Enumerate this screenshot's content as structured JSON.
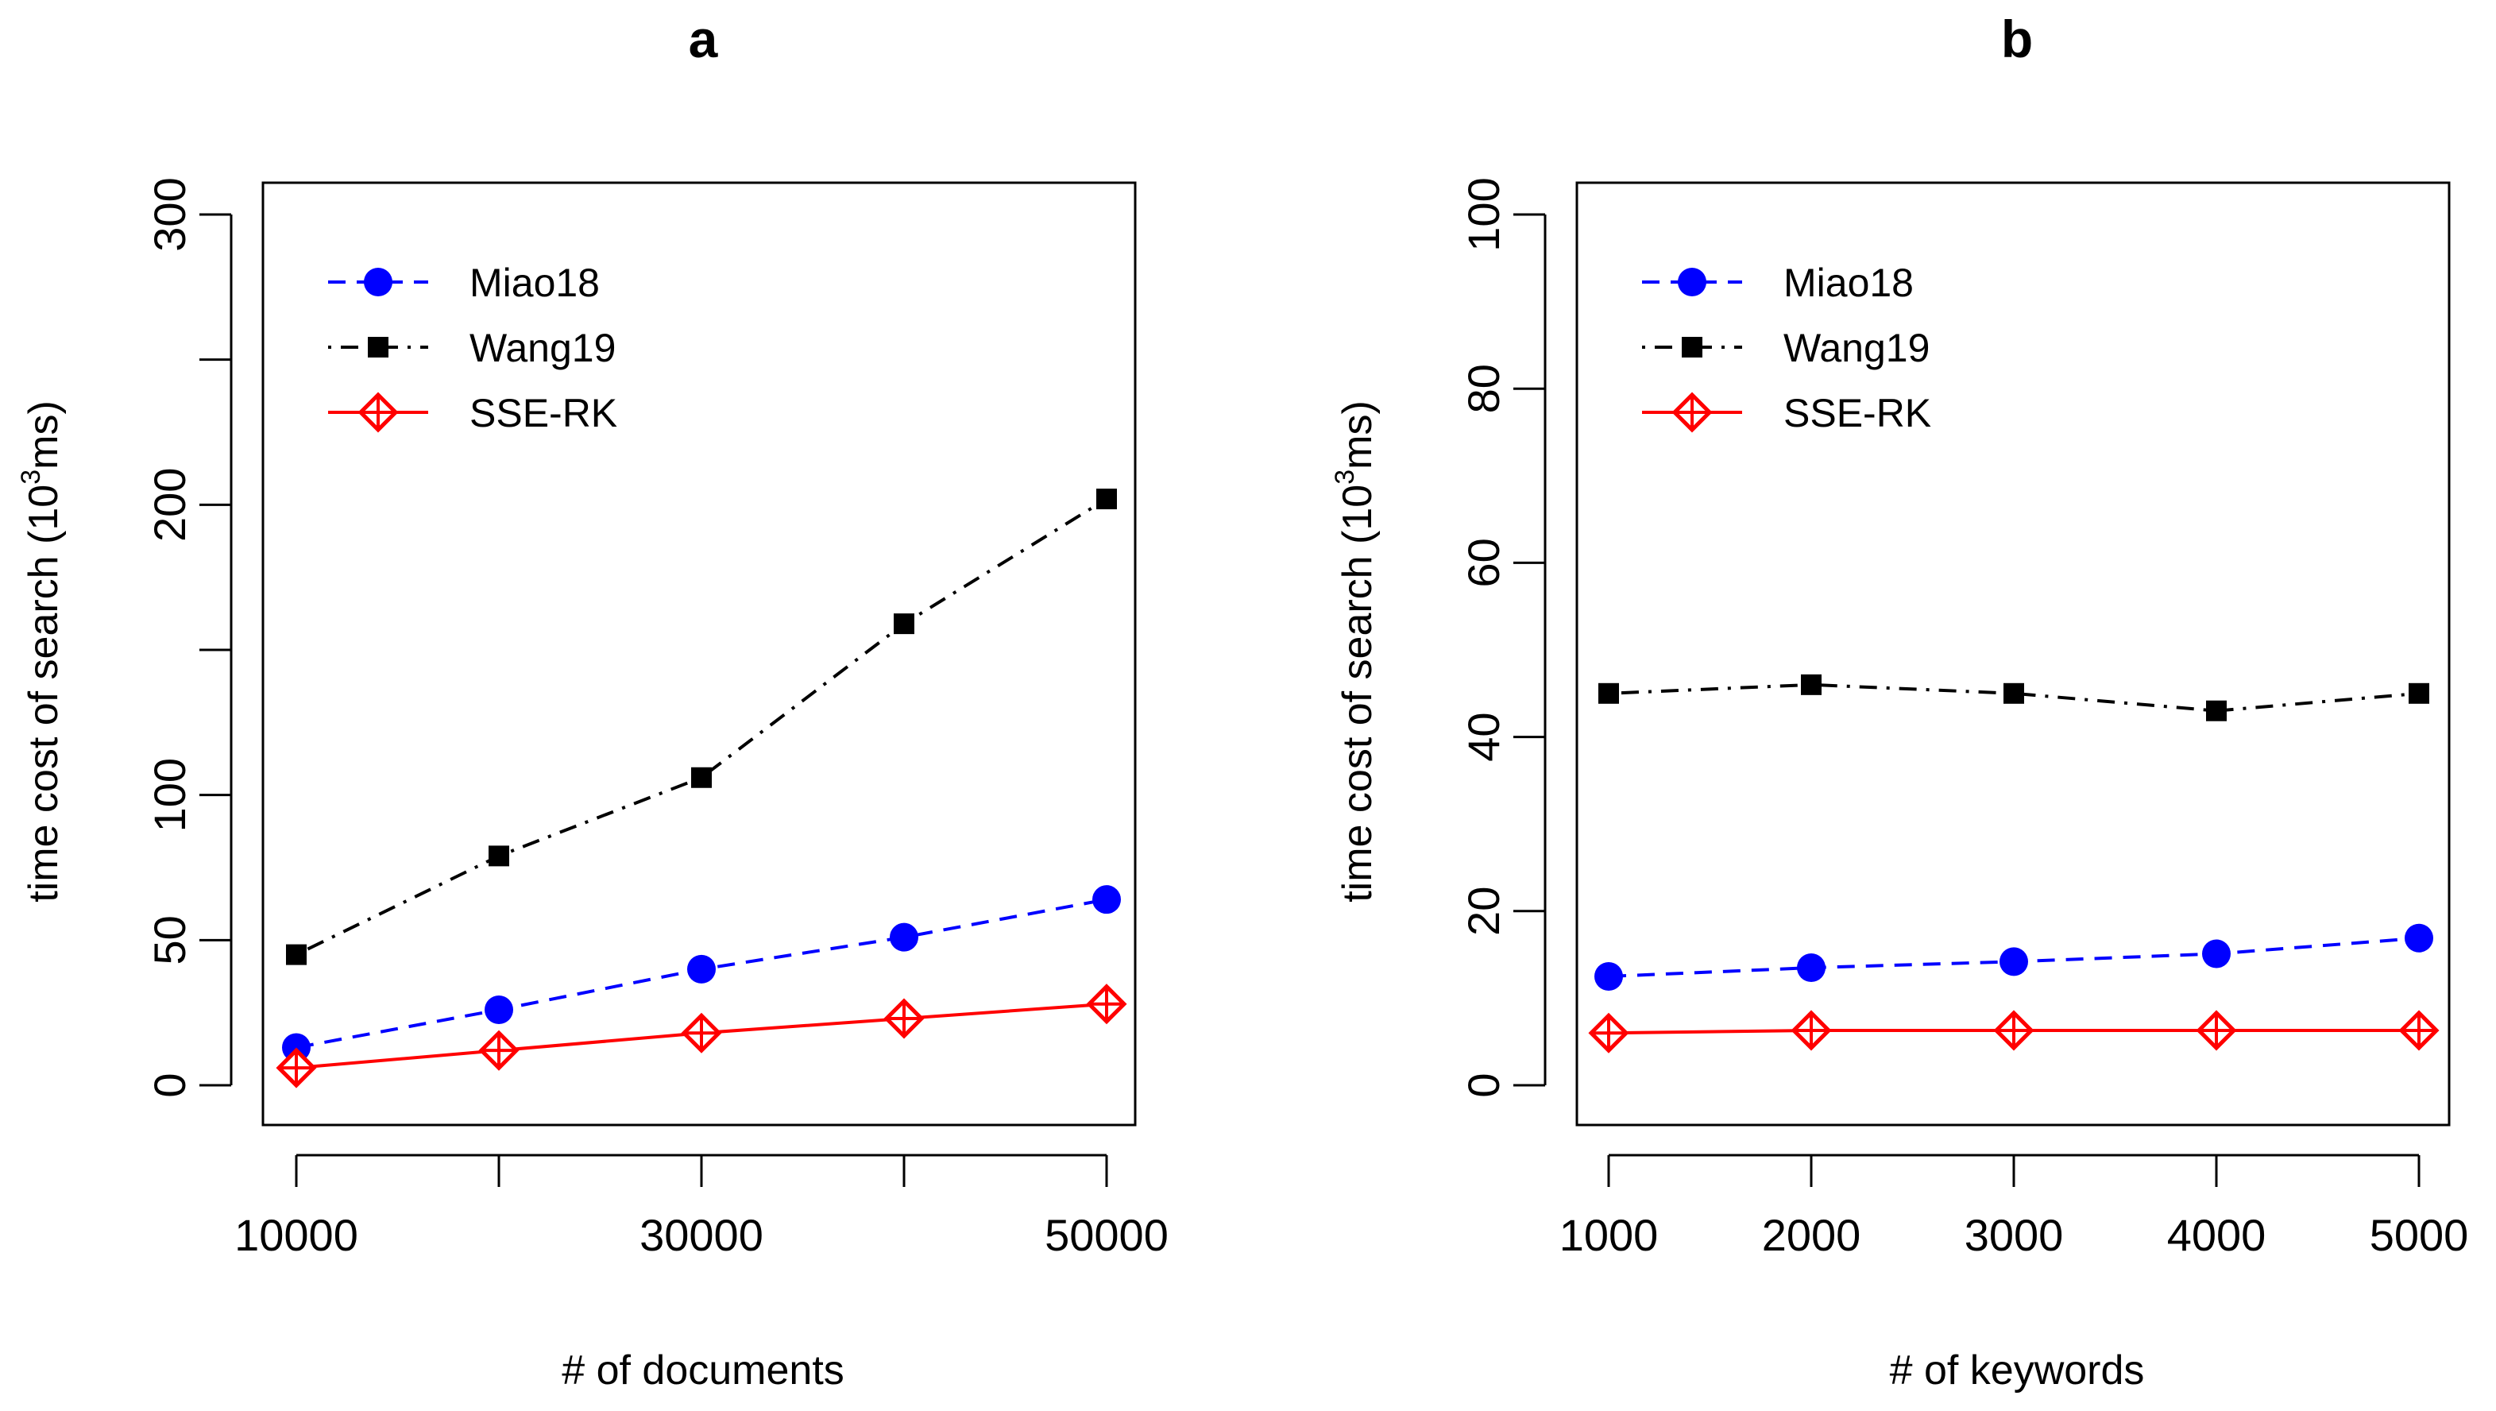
{
  "colors": {
    "miao": "#0000ff",
    "wang": "#000000",
    "sse": "#ff0000"
  },
  "chart_data": [
    {
      "type": "line",
      "title": "a",
      "xlabel": "# of documents",
      "ylabel_main": "time cost of search (10",
      "ylabel_sup": "3",
      "ylabel_end": "ms)",
      "xlim": [
        10000,
        50000
      ],
      "ylim": [
        0,
        300
      ],
      "x": [
        10000,
        20000,
        30000,
        40000,
        50000
      ],
      "xticks": [
        10000,
        20000,
        30000,
        40000,
        50000
      ],
      "xtick_labels": [
        "10000",
        "",
        "30000",
        "",
        "50000"
      ],
      "yticks": [
        0,
        50,
        100,
        150,
        200,
        250,
        300
      ],
      "ytick_labels": [
        "0",
        "50",
        "100",
        "",
        "200",
        "",
        "300"
      ],
      "legend_position": "top-left",
      "series": [
        {
          "name": "Miao18",
          "marker": "circle",
          "dash": "dashed",
          "color": "#0000ff",
          "values": [
            13,
            26,
            40,
            51,
            64
          ]
        },
        {
          "name": "Wang19",
          "marker": "square",
          "dash": "dotdash",
          "color": "#000000",
          "values": [
            45,
            79,
            106,
            159,
            202
          ]
        },
        {
          "name": "SSE-RK",
          "marker": "diamond-plus",
          "dash": "solid",
          "color": "#ff0000",
          "values": [
            6,
            12,
            18,
            23,
            28
          ]
        }
      ]
    },
    {
      "type": "line",
      "title": "b",
      "xlabel": "# of keywords",
      "ylabel_main": "time cost of search (10",
      "ylabel_sup": "3",
      "ylabel_end": "ms)",
      "xlim": [
        1000,
        5000
      ],
      "ylim": [
        0,
        100
      ],
      "x": [
        1000,
        2000,
        3000,
        4000,
        5000
      ],
      "xticks": [
        1000,
        2000,
        3000,
        4000,
        5000
      ],
      "xtick_labels": [
        "1000",
        "2000",
        "3000",
        "4000",
        "5000"
      ],
      "yticks": [
        0,
        20,
        40,
        60,
        80,
        100
      ],
      "ytick_labels": [
        "0",
        "20",
        "40",
        "60",
        "80",
        "100"
      ],
      "legend_position": "top-left",
      "series": [
        {
          "name": "Miao18",
          "marker": "circle",
          "dash": "dashed",
          "color": "#0000ff",
          "values": [
            12.5,
            13.5,
            14.2,
            15.1,
            16.9
          ]
        },
        {
          "name": "Wang19",
          "marker": "square",
          "dash": "dotdash",
          "color": "#000000",
          "values": [
            45,
            46,
            45,
            43,
            45
          ]
        },
        {
          "name": "SSE-RK",
          "marker": "diamond-plus",
          "dash": "solid",
          "color": "#ff0000",
          "values": [
            6,
            6.3,
            6.3,
            6.3,
            6.3
          ]
        }
      ]
    }
  ]
}
